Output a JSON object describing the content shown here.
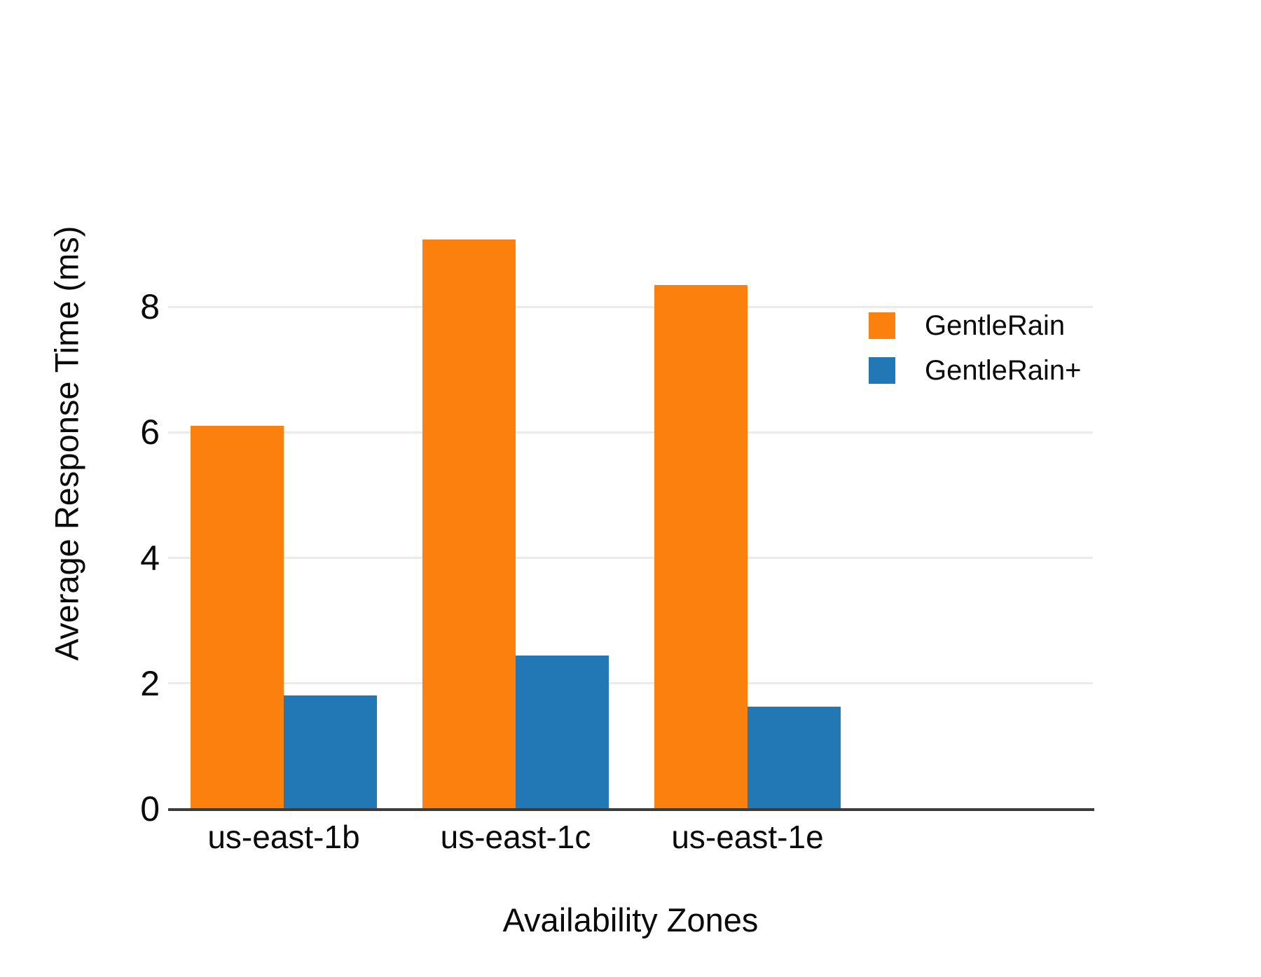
{
  "chart_data": {
    "type": "bar",
    "title": "",
    "categories": [
      "us-east-1b",
      "us-east-1c",
      "us-east-1e"
    ],
    "series": [
      {
        "name": "GentleRain",
        "color": "#fb800e",
        "values": [
          6.1,
          9.07,
          8.35
        ]
      },
      {
        "name": "GentleRain+",
        "color": "#2278b5",
        "values": [
          1.81,
          2.44,
          1.63
        ]
      }
    ],
    "xlabel": "Availability Zones",
    "ylabel": "Average Response Time (ms)",
    "yticks": [
      0,
      2,
      4,
      6,
      8
    ],
    "ylim": [
      0,
      9.6
    ],
    "grid": "horizontal gridlines at y ticks",
    "legend_position": "upper right"
  },
  "colors": {
    "background": "#ffffff",
    "gridline": "#ebebeb",
    "axis_line": "#3b3b3b",
    "text": "#0a0a0a"
  }
}
